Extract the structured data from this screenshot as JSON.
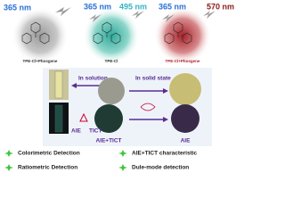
{
  "panels": [
    {
      "excitation": "365 nm",
      "caption": "TPE-Cl+Phosgene"
    },
    {
      "excitation": "365 nm",
      "emission": "495 nm",
      "caption": "TPE-Cl"
    },
    {
      "excitation": "365 nm",
      "emission": "570 nm",
      "caption": "TPE-Cl+Phosgene"
    }
  ],
  "states": {
    "solution": "In solution",
    "solid": "In solid state"
  },
  "labels": {
    "aie_left": "AIE",
    "tict": "TICT",
    "aie_tict": "AIE+TICT",
    "aie_right": "AIE"
  },
  "features": [
    "Colorimetric Detection",
    "AIE+TICT characteristic",
    "Ratiometric Detection",
    "Dule-mode detection"
  ]
}
